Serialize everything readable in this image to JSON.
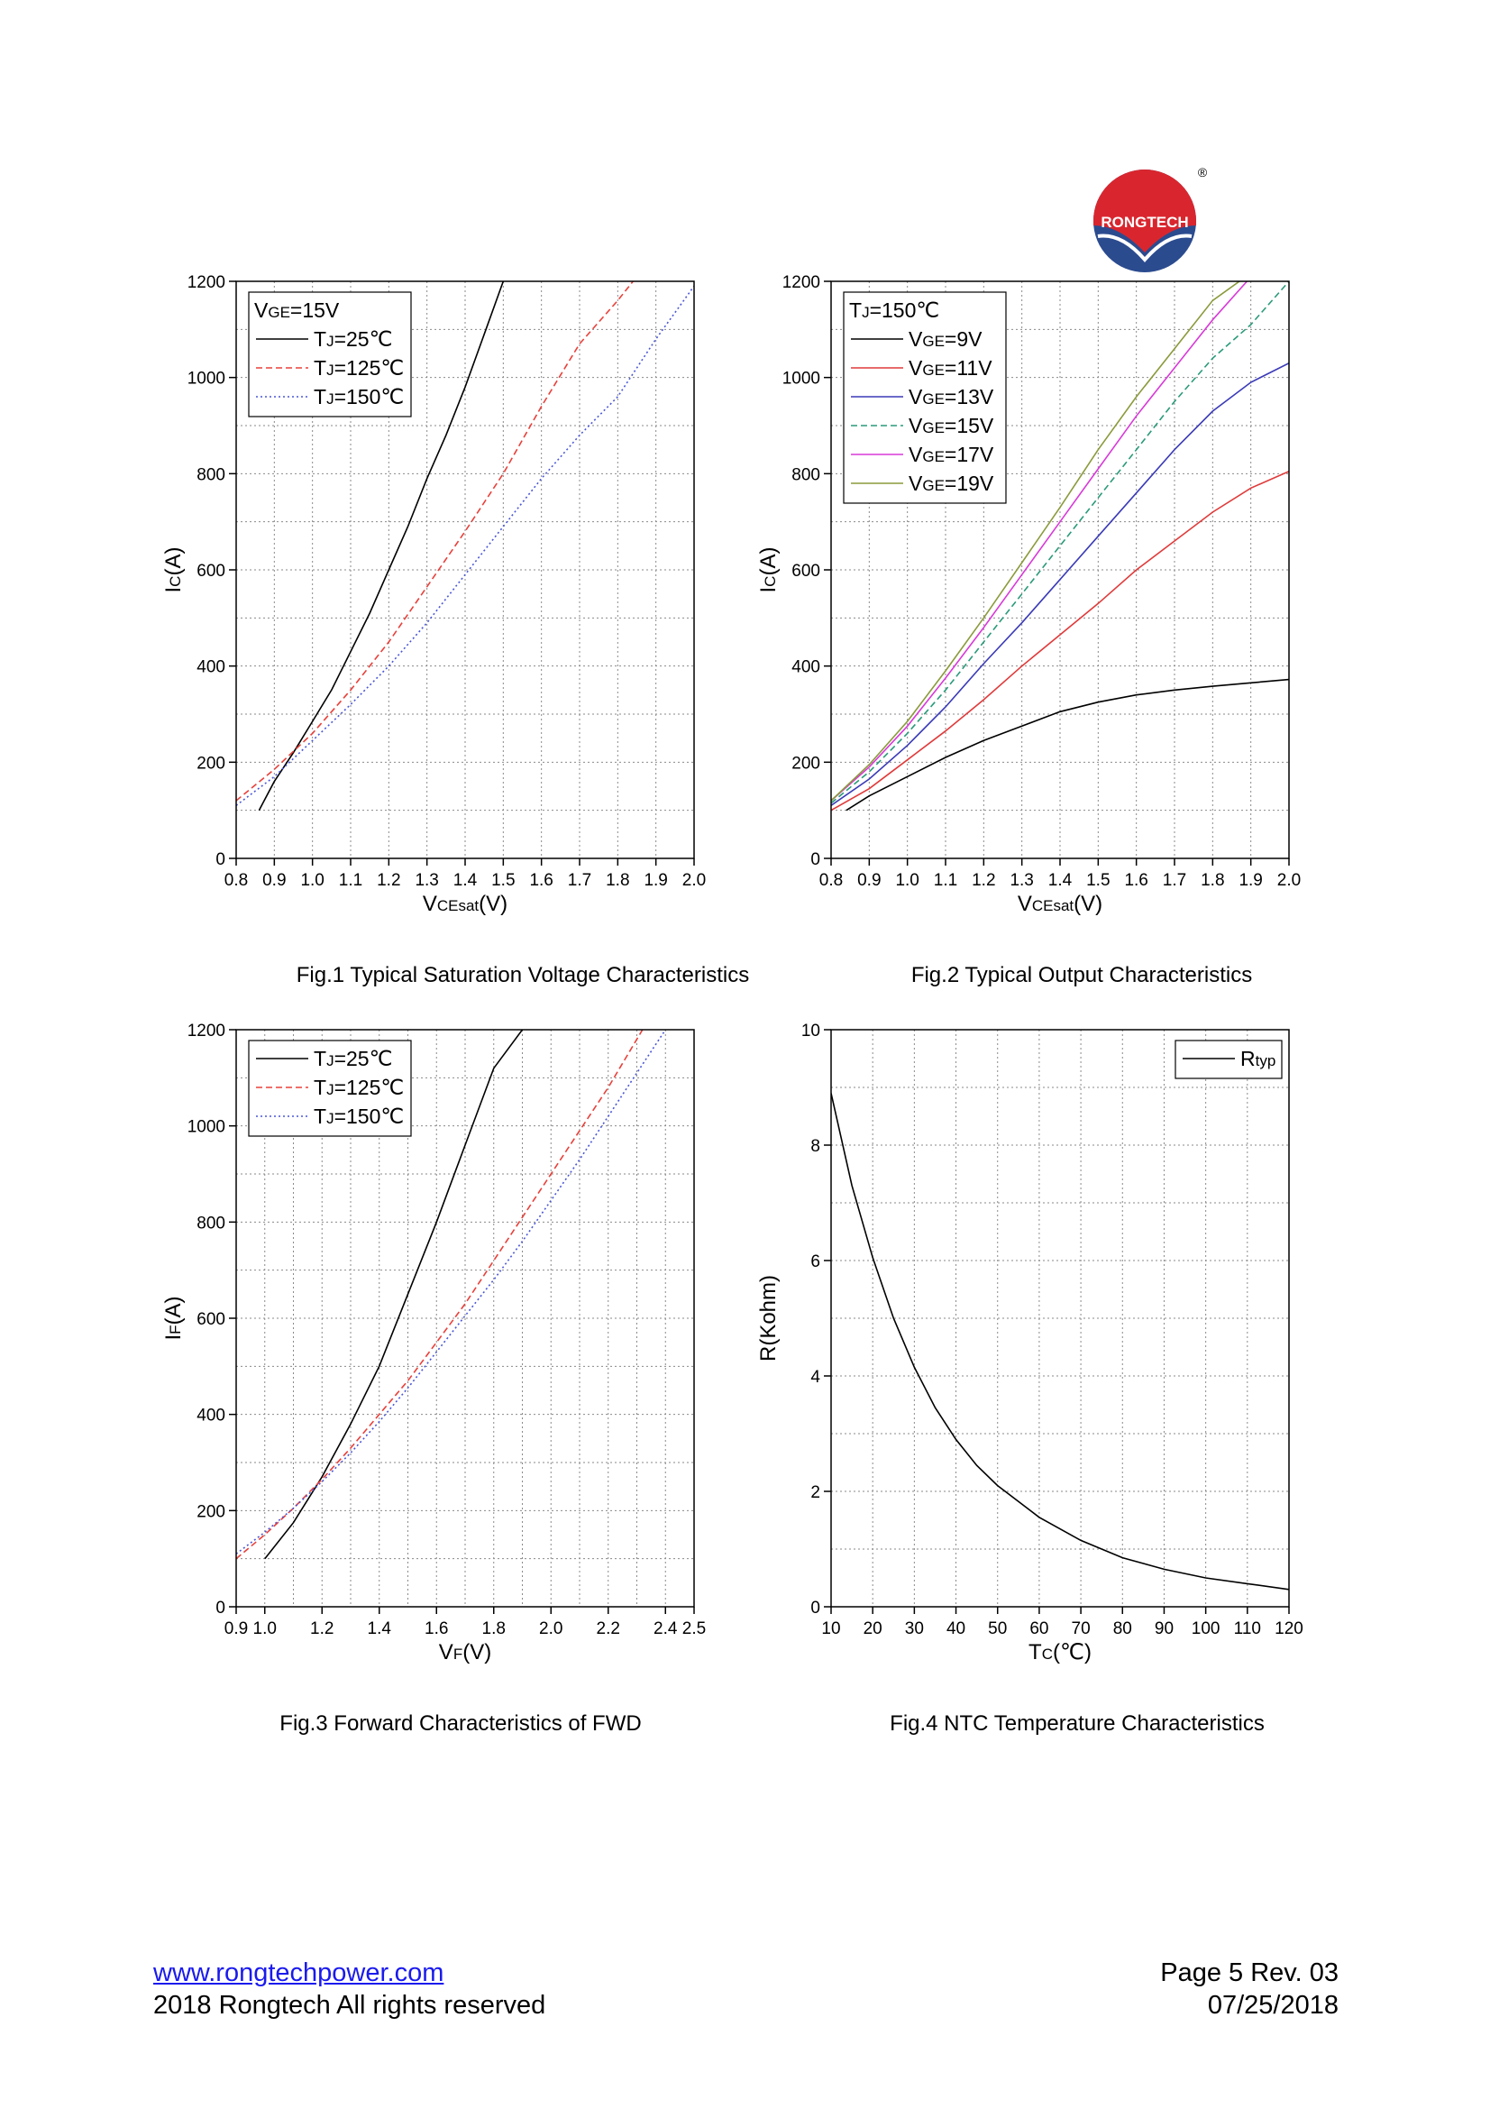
{
  "logo": {
    "brand": "RONGTECH",
    "registered_mark": "®",
    "colors": {
      "red": "#d9262e",
      "blue": "#2b4b8f"
    }
  },
  "footer": {
    "website": "www.rongtechpower.com",
    "copyright": "2018 Rongtech All rights reserved",
    "page": "Page 5 Rev. 03",
    "date": "07/25/2018"
  },
  "chart_data": [
    {
      "id": "fig1",
      "type": "line",
      "caption": "Fig.1 Typical Saturation Voltage Characteristics",
      "xlabel": {
        "main": "V",
        "sub": "CEsat",
        "tail": "(V)"
      },
      "ylabel": {
        "main": "I",
        "sub": "C",
        "tail": "(A)"
      },
      "xlim": [
        0.8,
        2.0
      ],
      "ylim": [
        0,
        1200
      ],
      "xticks": [
        0.8,
        0.9,
        1.0,
        1.1,
        1.2,
        1.3,
        1.4,
        1.5,
        1.6,
        1.7,
        1.8,
        1.9,
        2.0
      ],
      "xtick_labels": [
        "0.8",
        "0.9",
        "1.0",
        "1.1",
        "1.2",
        "1.3",
        "1.4",
        "1.5",
        "1.6",
        "1.7",
        "1.8",
        "1.9",
        "2.0"
      ],
      "yticks": [
        0,
        200,
        400,
        600,
        800,
        1000,
        1200
      ],
      "ytick_labels": [
        "0",
        "200",
        "400",
        "600",
        "800",
        "1000",
        "1200"
      ],
      "grid": true,
      "legend": {
        "position": "top-left",
        "header": {
          "main": "V",
          "sub": "GE",
          "tail": "=15V"
        },
        "entries": [
          {
            "main": "T",
            "sub": "J",
            "tail": "=25℃"
          },
          {
            "main": "T",
            "sub": "J",
            "tail": "=125℃"
          },
          {
            "main": "T",
            "sub": "J",
            "tail": "=150℃"
          }
        ]
      },
      "series": [
        {
          "name": "TJ=25℃",
          "color": "#000000",
          "dash": "solid",
          "x": [
            0.86,
            0.9,
            0.95,
            1.0,
            1.05,
            1.1,
            1.15,
            1.2,
            1.25,
            1.3,
            1.35,
            1.4,
            1.45,
            1.5
          ],
          "y": [
            100,
            160,
            220,
            285,
            350,
            430,
            510,
            600,
            690,
            790,
            880,
            980,
            1090,
            1200
          ]
        },
        {
          "name": "TJ=125℃",
          "color": "#e8403a",
          "dash": "dashed",
          "x": [
            0.8,
            0.9,
            1.0,
            1.1,
            1.2,
            1.3,
            1.4,
            1.5,
            1.6,
            1.7,
            1.8,
            1.84
          ],
          "y": [
            120,
            185,
            260,
            350,
            450,
            565,
            680,
            800,
            940,
            1070,
            1160,
            1200
          ]
        },
        {
          "name": "TJ=150℃",
          "color": "#4a56d6",
          "dash": "dotted",
          "x": [
            0.8,
            0.9,
            1.0,
            1.1,
            1.2,
            1.3,
            1.4,
            1.5,
            1.6,
            1.7,
            1.8,
            1.9,
            2.0
          ],
          "y": [
            110,
            170,
            245,
            320,
            400,
            490,
            590,
            690,
            790,
            880,
            960,
            1080,
            1190
          ]
        }
      ]
    },
    {
      "id": "fig2",
      "type": "line",
      "caption": "Fig.2 Typical Output Characteristics",
      "xlabel": {
        "main": "V",
        "sub": "CEsat",
        "tail": "(V)"
      },
      "ylabel": {
        "main": "I",
        "sub": "C",
        "tail": "(A)"
      },
      "xlim": [
        0.8,
        2.0
      ],
      "ylim": [
        0,
        1200
      ],
      "xticks": [
        0.8,
        0.9,
        1.0,
        1.1,
        1.2,
        1.3,
        1.4,
        1.5,
        1.6,
        1.7,
        1.8,
        1.9,
        2.0
      ],
      "xtick_labels": [
        "0.8",
        "0.9",
        "1.0",
        "1.1",
        "1.2",
        "1.3",
        "1.4",
        "1.5",
        "1.6",
        "1.7",
        "1.8",
        "1.9",
        "2.0"
      ],
      "yticks": [
        0,
        200,
        400,
        600,
        800,
        1000,
        1200
      ],
      "ytick_labels": [
        "0",
        "200",
        "400",
        "600",
        "800",
        "1000",
        "1200"
      ],
      "grid": true,
      "legend": {
        "position": "top-left",
        "header": {
          "main": "T",
          "sub": "J",
          "tail": "=150℃"
        },
        "entries": [
          {
            "main": "V",
            "sub": "GE",
            "tail": "=9V"
          },
          {
            "main": "V",
            "sub": "GE",
            "tail": "=11V"
          },
          {
            "main": "V",
            "sub": "GE",
            "tail": "=13V"
          },
          {
            "main": "V",
            "sub": "GE",
            "tail": "=15V"
          },
          {
            "main": "V",
            "sub": "GE",
            "tail": "=17V"
          },
          {
            "main": "V",
            "sub": "GE",
            "tail": "=19V"
          }
        ]
      },
      "series": [
        {
          "name": "VGE=9V",
          "color": "#000000",
          "dash": "solid",
          "x": [
            0.84,
            0.9,
            1.0,
            1.1,
            1.2,
            1.3,
            1.4,
            1.5,
            1.6,
            1.7,
            1.8,
            1.9,
            2.0
          ],
          "y": [
            100,
            130,
            170,
            210,
            245,
            275,
            305,
            325,
            340,
            350,
            358,
            365,
            372
          ]
        },
        {
          "name": "VGE=11V",
          "color": "#e03a3a",
          "dash": "solid",
          "x": [
            0.8,
            0.9,
            1.0,
            1.1,
            1.2,
            1.3,
            1.4,
            1.5,
            1.6,
            1.7,
            1.8,
            1.9,
            2.0
          ],
          "y": [
            100,
            145,
            205,
            265,
            330,
            400,
            465,
            530,
            600,
            660,
            720,
            770,
            805
          ]
        },
        {
          "name": "VGE=13V",
          "color": "#3a3ab8",
          "dash": "solid",
          "x": [
            0.8,
            0.9,
            1.0,
            1.1,
            1.2,
            1.3,
            1.4,
            1.5,
            1.6,
            1.7,
            1.8,
            1.9,
            2.0
          ],
          "y": [
            110,
            165,
            235,
            315,
            405,
            490,
            580,
            670,
            760,
            850,
            930,
            990,
            1030
          ]
        },
        {
          "name": "VGE=15V",
          "color": "#2a9a7a",
          "dash": "dashed",
          "x": [
            0.8,
            0.9,
            1.0,
            1.1,
            1.2,
            1.3,
            1.4,
            1.5,
            1.6,
            1.7,
            1.8,
            1.9,
            2.0
          ],
          "y": [
            115,
            180,
            260,
            350,
            450,
            550,
            650,
            750,
            850,
            950,
            1040,
            1110,
            1200
          ]
        },
        {
          "name": "VGE=17V",
          "color": "#d83ad8",
          "dash": "solid",
          "x": [
            0.8,
            0.9,
            1.0,
            1.1,
            1.2,
            1.3,
            1.4,
            1.5,
            1.6,
            1.7,
            1.8,
            1.89
          ],
          "y": [
            120,
            190,
            275,
            375,
            480,
            590,
            700,
            810,
            920,
            1020,
            1120,
            1200
          ]
        },
        {
          "name": "VGE=19V",
          "color": "#8a9a3a",
          "dash": "solid",
          "x": [
            0.8,
            0.9,
            1.0,
            1.1,
            1.2,
            1.3,
            1.4,
            1.5,
            1.6,
            1.7,
            1.8,
            1.87
          ],
          "y": [
            120,
            195,
            285,
            390,
            500,
            615,
            730,
            850,
            960,
            1060,
            1160,
            1200
          ]
        }
      ]
    },
    {
      "id": "fig3",
      "type": "line",
      "caption": "Fig.3 Forward Characteristics of FWD",
      "xlabel": {
        "main": "V",
        "sub": "F",
        "tail": "(V)"
      },
      "ylabel": {
        "main": "I",
        "sub": "F",
        "tail": "(A)"
      },
      "xlim": [
        0.9,
        2.5
      ],
      "ylim": [
        0,
        1200
      ],
      "xticks": [
        0.9,
        1.0,
        1.2,
        1.4,
        1.6,
        1.8,
        2.0,
        2.2,
        2.4,
        2.5
      ],
      "xtick_labels": [
        "0.9",
        "1.0",
        "1.2",
        "1.4",
        "1.6",
        "1.8",
        "2.0",
        "2.2",
        "2.4",
        "2.5"
      ],
      "xgrid": [
        0.9,
        1.0,
        1.1,
        1.2,
        1.3,
        1.4,
        1.5,
        1.6,
        1.7,
        1.8,
        1.9,
        2.0,
        2.1,
        2.2,
        2.3,
        2.4,
        2.5
      ],
      "yticks": [
        0,
        200,
        400,
        600,
        800,
        1000,
        1200
      ],
      "ytick_labels": [
        "0",
        "200",
        "400",
        "600",
        "800",
        "1000",
        "1200"
      ],
      "grid": true,
      "legend": {
        "position": "top-left",
        "header": null,
        "entries": [
          {
            "main": "T",
            "sub": "J",
            "tail": "=25℃"
          },
          {
            "main": "T",
            "sub": "J",
            "tail": "=125℃"
          },
          {
            "main": "T",
            "sub": "J",
            "tail": "=150℃"
          }
        ]
      },
      "series": [
        {
          "name": "TJ=25℃",
          "color": "#000000",
          "dash": "solid",
          "x": [
            1.0,
            1.1,
            1.2,
            1.3,
            1.4,
            1.5,
            1.6,
            1.7,
            1.8,
            1.9
          ],
          "y": [
            100,
            175,
            270,
            380,
            500,
            650,
            800,
            960,
            1120,
            1200
          ]
        },
        {
          "name": "TJ=125℃",
          "color": "#e8403a",
          "dash": "dashed",
          "x": [
            0.9,
            1.0,
            1.1,
            1.2,
            1.3,
            1.4,
            1.5,
            1.6,
            1.7,
            1.8,
            1.9,
            2.0,
            2.1,
            2.2,
            2.32
          ],
          "y": [
            100,
            150,
            205,
            265,
            330,
            400,
            470,
            550,
            630,
            720,
            810,
            900,
            990,
            1080,
            1200
          ]
        },
        {
          "name": "TJ=150℃",
          "color": "#4a56d6",
          "dash": "dotted",
          "x": [
            0.9,
            1.0,
            1.1,
            1.2,
            1.3,
            1.4,
            1.5,
            1.6,
            1.7,
            1.8,
            1.9,
            2.0,
            2.1,
            2.2,
            2.3,
            2.4
          ],
          "y": [
            110,
            155,
            205,
            260,
            320,
            385,
            455,
            530,
            605,
            680,
            760,
            845,
            930,
            1020,
            1110,
            1200
          ]
        }
      ]
    },
    {
      "id": "fig4",
      "type": "line",
      "caption": "Fig.4 NTC Temperature Characteristics",
      "xlabel": {
        "main": "T",
        "sub": "C",
        "tail": "(℃)"
      },
      "ylabel": {
        "main": "R(Kohm)",
        "sub": "",
        "tail": ""
      },
      "xlim": [
        10,
        120
      ],
      "ylim": [
        0,
        10
      ],
      "xticks": [
        10,
        20,
        30,
        40,
        50,
        60,
        70,
        80,
        90,
        100,
        110,
        120
      ],
      "xtick_labels": [
        "10",
        "20",
        "30",
        "40",
        "50",
        "60",
        "70",
        "80",
        "90",
        "100",
        "110",
        "120"
      ],
      "yticks": [
        0,
        2,
        4,
        6,
        8,
        10
      ],
      "ytick_labels": [
        "0",
        "2",
        "4",
        "6",
        "8",
        "10"
      ],
      "ygrid": [
        0,
        1,
        2,
        3,
        4,
        5,
        6,
        7,
        8,
        9,
        10
      ],
      "grid": true,
      "legend": {
        "position": "top-right",
        "header": null,
        "entries": [
          {
            "main": "R",
            "sub": "typ",
            "tail": ""
          }
        ]
      },
      "series": [
        {
          "name": "Rtyp",
          "color": "#000000",
          "dash": "solid",
          "x": [
            10,
            15,
            20,
            25,
            30,
            35,
            40,
            45,
            50,
            60,
            70,
            80,
            90,
            100,
            110,
            120
          ],
          "y": [
            8.9,
            7.3,
            6.05,
            5.0,
            4.15,
            3.45,
            2.9,
            2.45,
            2.1,
            1.55,
            1.15,
            0.85,
            0.65,
            0.5,
            0.4,
            0.3
          ]
        }
      ]
    }
  ]
}
